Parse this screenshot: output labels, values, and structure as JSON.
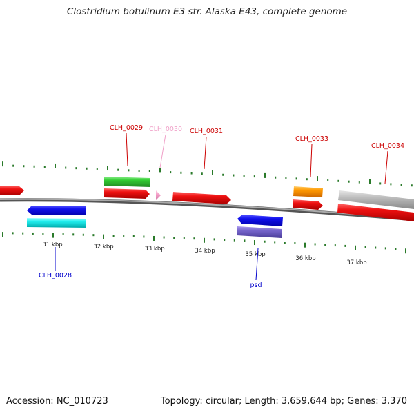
{
  "title": "Clostridium botulinum E3 str. Alaska E43, complete genome",
  "footer": {
    "accession": "Accession: NC_010723",
    "stats": "Topology: circular; Length: 3,659,644 bp; Genes: 3,370"
  },
  "scale": {
    "ticks": [
      "31 kbp",
      "32 kbp",
      "33 kbp",
      "34 kbp",
      "35 kbp",
      "36 kbp",
      "37 kbp"
    ]
  },
  "genes": [
    {
      "label": "CLH_0028",
      "strand": "reverse",
      "color": "#0000cc"
    },
    {
      "label": "CLH_0029",
      "strand": "forward",
      "color": "#cc0000"
    },
    {
      "label": "CLH_0030",
      "strand": "forward",
      "color": "#f0a0c8"
    },
    {
      "label": "CLH_0031",
      "strand": "forward",
      "color": "#cc0000"
    },
    {
      "label": "psd",
      "strand": "reverse",
      "color": "#0000cc"
    },
    {
      "label": "CLH_0033",
      "strand": "forward",
      "color": "#cc0000"
    },
    {
      "label": "CLH_0034",
      "strand": "forward",
      "color": "#cc0000"
    }
  ],
  "colors": {
    "backbone": "#888888",
    "ticks": "#2a7a2a",
    "cds_forward": "#ee1111",
    "cds_reverse": "#1111ee",
    "rna_cyan": "#22eeee",
    "green_feature": "#33cc33",
    "orange_feature": "#ff9900",
    "gray_feature": "#bbbbbb",
    "purple_feature": "#7766cc",
    "pink_feature": "#f5a0c8"
  }
}
